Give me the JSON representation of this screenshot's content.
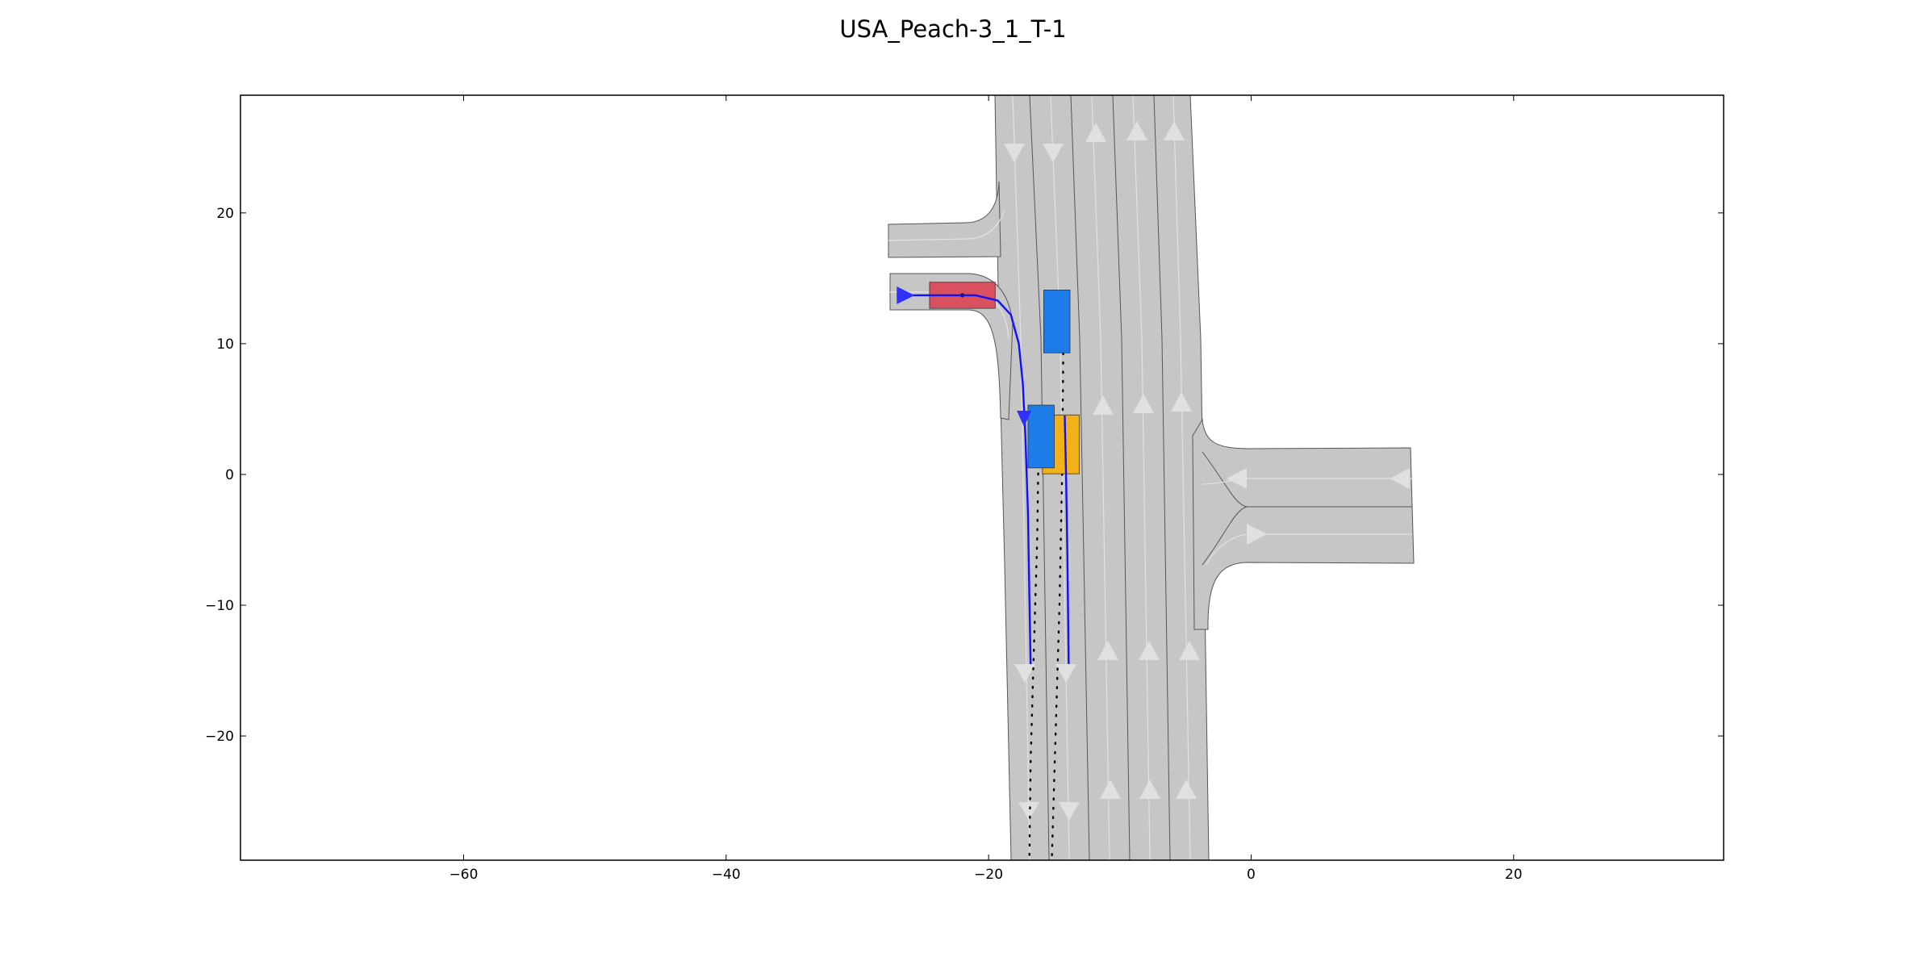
{
  "title": "USA_Peach-3_1_T-1",
  "axes": {
    "xlim": [
      -77,
      36
    ],
    "ylim": [
      -29.5,
      29
    ],
    "xticks": [
      -60,
      -40,
      -20,
      0,
      20
    ],
    "yticks": [
      20,
      10,
      0,
      -10,
      -20
    ],
    "xtick_labels": [
      "−60",
      "−40",
      "−20",
      "0",
      "20"
    ],
    "ytick_labels": [
      "20",
      "10",
      "0",
      "−10",
      "−20"
    ]
  },
  "colors": {
    "road": "#c6c6c6",
    "road_edge": "#555555",
    "lane_center": "#e2e2e2",
    "arrow": "#e0e0e0",
    "ego": "#d9515e",
    "obstacle": "#1e7ce8",
    "goal": "#f2b019",
    "planned_path": "#1010ff",
    "start_marker": "#3030ff",
    "prediction_dots": "#000000"
  },
  "scene": {
    "ego_vehicle": {
      "center": [
        -22,
        13.7
      ],
      "length": 5,
      "width": 2
    },
    "obstacles": [
      {
        "center": [
          -14.8,
          11.7
        ],
        "length": 4.8,
        "width": 2
      },
      {
        "center": [
          -16.0,
          2.9
        ],
        "length": 4.8,
        "width": 2
      }
    ],
    "goal_region": {
      "center": [
        -14.5,
        2.3
      ],
      "length": 4.5,
      "width": 2.8
    },
    "planned_path": [
      [
        -27,
        13.7
      ],
      [
        -21,
        13.7
      ],
      [
        -19.3,
        13.3
      ],
      [
        -18.3,
        12.2
      ],
      [
        -17.7,
        10
      ],
      [
        -17.4,
        7
      ],
      [
        -17.2,
        3
      ],
      [
        -17,
        -3
      ],
      [
        -16.9,
        -9
      ],
      [
        -16.8,
        -14.5
      ]
    ],
    "second_path": [
      [
        -14.2,
        4.5
      ],
      [
        -14.1,
        0
      ],
      [
        -14.0,
        -6
      ],
      [
        -13.9,
        -14.5
      ]
    ],
    "prediction_tracks": [
      [
        [
          -14.3,
          10.7
        ],
        [
          -14.4,
          0
        ],
        [
          -14.6,
          -10
        ],
        [
          -14.9,
          -20
        ],
        [
          -15.2,
          -30
        ]
      ],
      [
        [
          -16.2,
          1.5
        ],
        [
          -16.3,
          -5
        ],
        [
          -16.6,
          -15
        ],
        [
          -16.8,
          -22
        ],
        [
          -16.9,
          -30
        ]
      ]
    ]
  }
}
